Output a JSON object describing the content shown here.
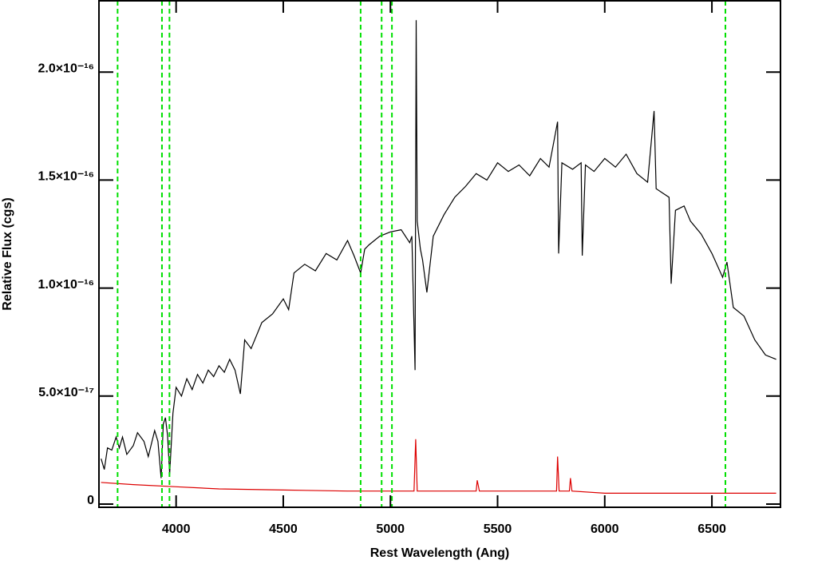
{
  "chart_data": {
    "type": "line",
    "xlabel": "Rest Wavelength (Ang)",
    "ylabel": "Relative Flux (cgs)",
    "xlim": [
      3640,
      6820
    ],
    "ylim": [
      -1.5e-18,
      2.33e-16
    ],
    "xticks": [
      4000,
      4500,
      5000,
      5500,
      6000,
      6500
    ],
    "yticks": [
      {
        "value": 0,
        "label": "0"
      },
      {
        "value": 5e-17,
        "label": "5.0×10⁻¹⁷"
      },
      {
        "value": 1e-16,
        "label": "1.0×10⁻¹⁶"
      },
      {
        "value": 1.5e-16,
        "label": "1.5×10⁻¹⁶"
      },
      {
        "value": 2e-16,
        "label": "2.0×10⁻¹⁶"
      }
    ],
    "vlines": {
      "color": "#00e000",
      "x": [
        3727,
        3934,
        3969,
        4861,
        4959,
        5007,
        6563
      ]
    },
    "series": [
      {
        "color": "#000000",
        "x": [
          3650,
          3665,
          3680,
          3700,
          3720,
          3735,
          3750,
          3770,
          3800,
          3820,
          3850,
          3870,
          3900,
          3915,
          3930,
          3940,
          3950,
          3960,
          3970,
          3985,
          4000,
          4025,
          4050,
          4075,
          4100,
          4125,
          4150,
          4175,
          4200,
          4225,
          4250,
          4275,
          4300,
          4320,
          4350,
          4400,
          4450,
          4500,
          4525,
          4550,
          4600,
          4650,
          4700,
          4750,
          4800,
          4830,
          4861,
          4880,
          4900,
          4950,
          5000,
          5050,
          5090,
          5100,
          5115,
          5120,
          5125,
          5140,
          5150,
          5170,
          5200,
          5250,
          5300,
          5350,
          5400,
          5450,
          5500,
          5550,
          5600,
          5650,
          5700,
          5740,
          5780,
          5785,
          5800,
          5850,
          5890,
          5895,
          5910,
          5950,
          6000,
          6050,
          6100,
          6150,
          6200,
          6230,
          6240,
          6270,
          6300,
          6310,
          6330,
          6370,
          6400,
          6450,
          6500,
          6550,
          6570,
          6600,
          6650,
          6700,
          6750,
          6800
        ],
        "values": [
          2.1e-17,
          1.6e-17,
          2.6e-17,
          2.5e-17,
          3.1e-17,
          2.6e-17,
          3.1e-17,
          2.3e-17,
          2.7e-17,
          3.3e-17,
          2.9e-17,
          2.2e-17,
          3.4e-17,
          2.9e-17,
          1.2e-17,
          3.7e-17,
          4e-17,
          3.2e-17,
          1.4e-17,
          4.2e-17,
          5.4e-17,
          5e-17,
          5.8e-17,
          5.3e-17,
          6e-17,
          5.6e-17,
          6.2e-17,
          5.9e-17,
          6.4e-17,
          6.1e-17,
          6.7e-17,
          6.2e-17,
          5.1e-17,
          7.6e-17,
          7.2e-17,
          8.4e-17,
          8.8e-17,
          9.5e-17,
          9e-17,
          1.07e-16,
          1.11e-16,
          1.08e-16,
          1.16e-16,
          1.13e-16,
          1.22e-16,
          1.15e-16,
          1.07e-16,
          1.18e-16,
          1.2e-16,
          1.24e-16,
          1.26e-16,
          1.27e-16,
          1.21e-16,
          1.24e-16,
          6.2e-17,
          2.24e-16,
          1.31e-16,
          1.18e-16,
          1.13e-16,
          9.8e-17,
          1.24e-16,
          1.34e-16,
          1.42e-16,
          1.47e-16,
          1.53e-16,
          1.5e-16,
          1.58e-16,
          1.54e-16,
          1.57e-16,
          1.52e-16,
          1.6e-16,
          1.56e-16,
          1.77e-16,
          1.16e-16,
          1.58e-16,
          1.55e-16,
          1.58e-16,
          1.15e-16,
          1.57e-16,
          1.54e-16,
          1.6e-16,
          1.56e-16,
          1.62e-16,
          1.53e-16,
          1.49e-16,
          1.82e-16,
          1.46e-16,
          1.44e-16,
          1.42e-16,
          1.02e-16,
          1.36e-16,
          1.38e-16,
          1.31e-16,
          1.25e-16,
          1.16e-16,
          1.05e-16,
          1.12e-16,
          9.1e-17,
          8.7e-17,
          7.6e-17,
          6.9e-17,
          6.7e-17
        ]
      },
      {
        "color": "#dd0000",
        "x": [
          3650,
          3800,
          4000,
          4200,
          4500,
          4800,
          5100,
          5110,
          5118,
          5125,
          5400,
          5405,
          5415,
          5775,
          5780,
          5787,
          5835,
          5840,
          5847,
          6000,
          6400,
          6800
        ],
        "values": [
          1e-17,
          9e-18,
          8e-18,
          7e-18,
          6.5e-18,
          6e-18,
          6e-18,
          6e-18,
          3e-17,
          6e-18,
          6e-18,
          1.1e-17,
          6e-18,
          6e-18,
          2.2e-17,
          6e-18,
          6e-18,
          1.2e-17,
          6e-18,
          5e-18,
          5e-18,
          5e-18
        ]
      }
    ]
  }
}
